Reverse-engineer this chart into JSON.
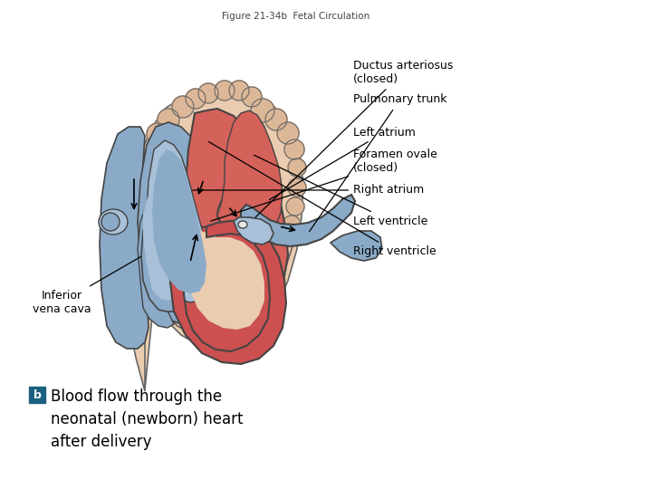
{
  "title": "Figure 21-34b  Fetal Circulation",
  "title_fontsize": 7.5,
  "title_color": "#444444",
  "background_color": "#ffffff",
  "labels": {
    "ductus_arteriosus": "Ductus arteriosus\n(closed)",
    "pulmonary_trunk": "Pulmonary trunk",
    "left_atrium": "Left atrium",
    "foramen_ovale": "Foramen ovale\n(closed)",
    "right_atrium": "Right atrium",
    "left_ventricle": "Left ventricle",
    "right_ventricle": "Right ventricle",
    "inferior_vena_cava": "Inferior\nvena cava"
  },
  "caption_b_box_color": "#1a6080",
  "caption_b_text_color": "#ffffff",
  "caption": "Blood flow through the\nneonatal (newborn) heart\nafter delivery",
  "caption_fontsize": 12,
  "label_fontsize": 9,
  "colors": {
    "heart_red": "#d4625a",
    "heart_pink": "#e8908a",
    "heart_dark": "#b04040",
    "blue_vessel": "#8aaac8",
    "blue_light": "#a8c0d8",
    "blue_dark": "#6888aa",
    "skin_tan": "#ddb898",
    "skin_light": "#eaccb0",
    "aorta_red": "#cc5050",
    "aorta_arch": "#d86868",
    "outline": "#666666",
    "outline_dark": "#444444"
  }
}
